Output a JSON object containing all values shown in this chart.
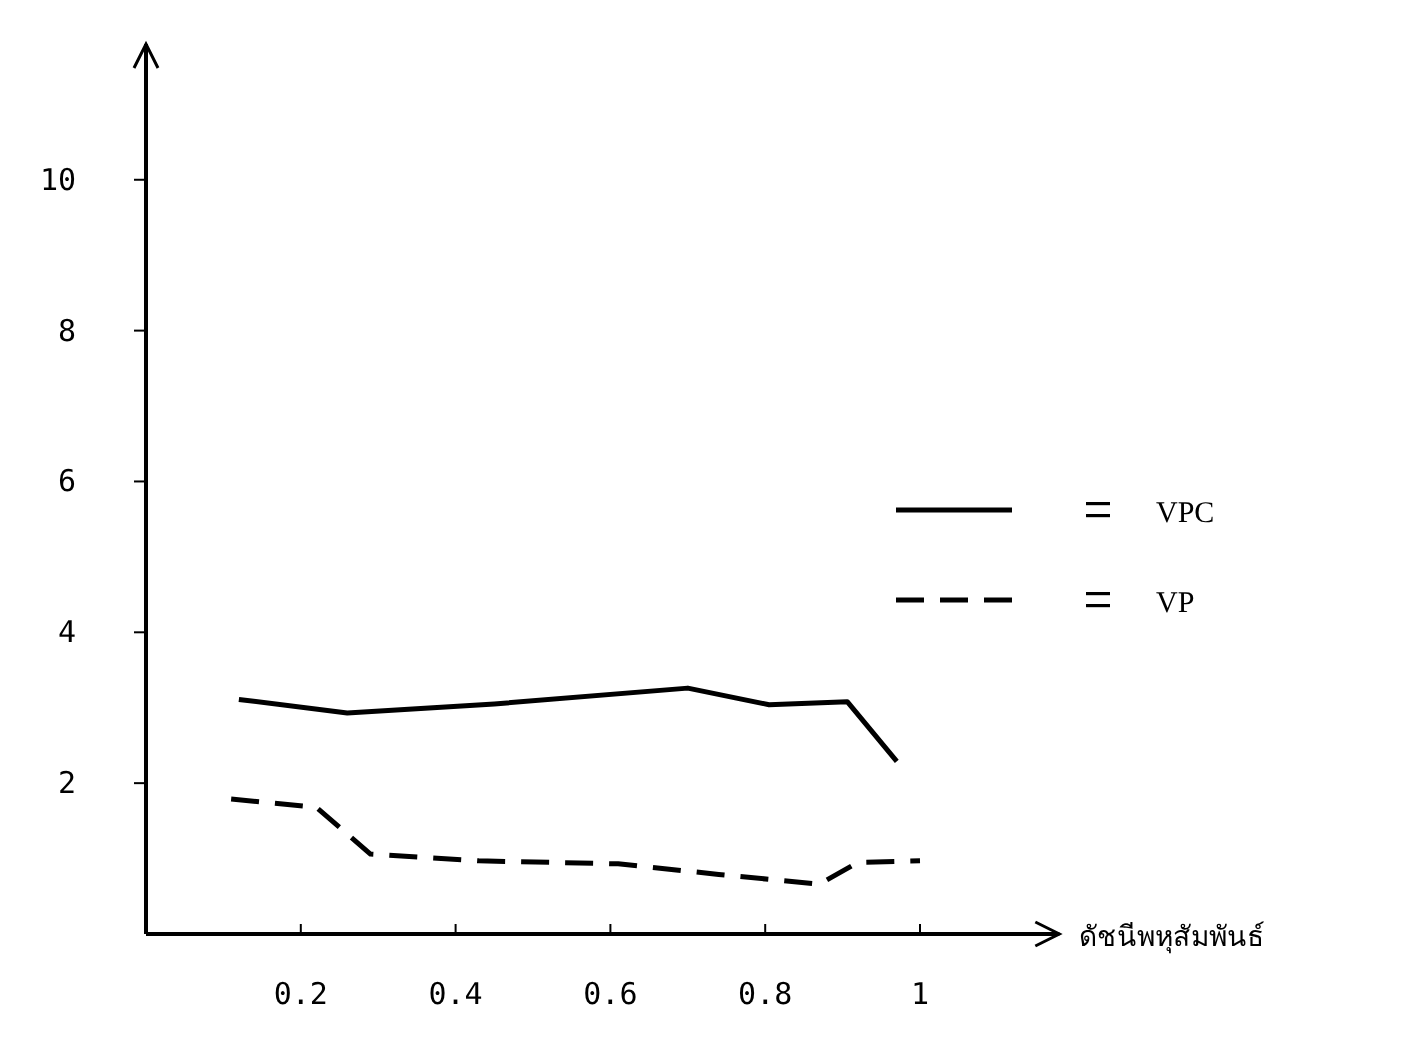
{
  "chart_data": {
    "type": "line",
    "xlabel": "ดัชนีพหุสัมพันธ์",
    "xlim": [
      0,
      1.18
    ],
    "ylim": [
      0,
      11.8
    ],
    "xticks": [
      0.2,
      0.4,
      0.6,
      0.8,
      1
    ],
    "yticks": [
      2,
      4,
      6,
      8,
      10
    ],
    "legend": "right",
    "grid": false,
    "series": [
      {
        "name": "VPC",
        "color": "#000000",
        "line_style": "solid",
        "x": [
          0.12,
          0.26,
          0.45,
          0.7,
          0.805,
          0.906,
          0.97
        ],
        "values": [
          3.11,
          2.93,
          3.05,
          3.26,
          3.04,
          3.08,
          2.29
        ]
      },
      {
        "name": "VP",
        "color": "#000000",
        "line_style": "dashed",
        "x": [
          0.11,
          0.22,
          0.29,
          0.43,
          0.61,
          0.74,
          0.87,
          0.92,
          1.0
        ],
        "values": [
          1.79,
          1.68,
          1.06,
          0.97,
          0.93,
          0.79,
          0.66,
          0.95,
          0.97
        ]
      }
    ]
  }
}
